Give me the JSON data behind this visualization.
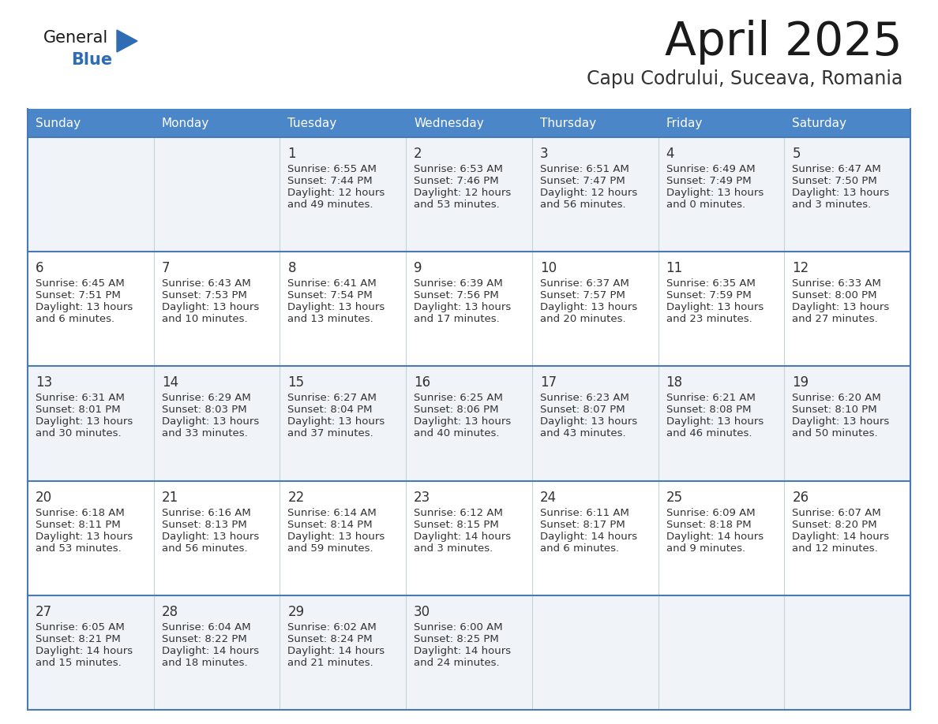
{
  "title": "April 2025",
  "subtitle": "Capu Codrului, Suceava, Romania",
  "days_of_week": [
    "Sunday",
    "Monday",
    "Tuesday",
    "Wednesday",
    "Thursday",
    "Friday",
    "Saturday"
  ],
  "header_bg": "#4a86c8",
  "header_text": "#ffffff",
  "row_bg_odd": "#f0f4f8",
  "row_bg_even": "#ffffff",
  "border_color": "#4a7ab5",
  "separator_color": "#4a7ab5",
  "day_number_color": "#333333",
  "text_color": "#333333",
  "title_color": "#1a1a1a",
  "subtitle_color": "#333333",
  "logo_general_color": "#1a1a1a",
  "logo_blue_color": "#2e6db4",
  "calendar_data": [
    {
      "day": 1,
      "col": 2,
      "row": 0,
      "sunrise": "6:55 AM",
      "sunset": "7:44 PM",
      "daylight": "12 hours and 49 minutes."
    },
    {
      "day": 2,
      "col": 3,
      "row": 0,
      "sunrise": "6:53 AM",
      "sunset": "7:46 PM",
      "daylight": "12 hours and 53 minutes."
    },
    {
      "day": 3,
      "col": 4,
      "row": 0,
      "sunrise": "6:51 AM",
      "sunset": "7:47 PM",
      "daylight": "12 hours and 56 minutes."
    },
    {
      "day": 4,
      "col": 5,
      "row": 0,
      "sunrise": "6:49 AM",
      "sunset": "7:49 PM",
      "daylight": "13 hours and 0 minutes."
    },
    {
      "day": 5,
      "col": 6,
      "row": 0,
      "sunrise": "6:47 AM",
      "sunset": "7:50 PM",
      "daylight": "13 hours and 3 minutes."
    },
    {
      "day": 6,
      "col": 0,
      "row": 1,
      "sunrise": "6:45 AM",
      "sunset": "7:51 PM",
      "daylight": "13 hours and 6 minutes."
    },
    {
      "day": 7,
      "col": 1,
      "row": 1,
      "sunrise": "6:43 AM",
      "sunset": "7:53 PM",
      "daylight": "13 hours and 10 minutes."
    },
    {
      "day": 8,
      "col": 2,
      "row": 1,
      "sunrise": "6:41 AM",
      "sunset": "7:54 PM",
      "daylight": "13 hours and 13 minutes."
    },
    {
      "day": 9,
      "col": 3,
      "row": 1,
      "sunrise": "6:39 AM",
      "sunset": "7:56 PM",
      "daylight": "13 hours and 17 minutes."
    },
    {
      "day": 10,
      "col": 4,
      "row": 1,
      "sunrise": "6:37 AM",
      "sunset": "7:57 PM",
      "daylight": "13 hours and 20 minutes."
    },
    {
      "day": 11,
      "col": 5,
      "row": 1,
      "sunrise": "6:35 AM",
      "sunset": "7:59 PM",
      "daylight": "13 hours and 23 minutes."
    },
    {
      "day": 12,
      "col": 6,
      "row": 1,
      "sunrise": "6:33 AM",
      "sunset": "8:00 PM",
      "daylight": "13 hours and 27 minutes."
    },
    {
      "day": 13,
      "col": 0,
      "row": 2,
      "sunrise": "6:31 AM",
      "sunset": "8:01 PM",
      "daylight": "13 hours and 30 minutes."
    },
    {
      "day": 14,
      "col": 1,
      "row": 2,
      "sunrise": "6:29 AM",
      "sunset": "8:03 PM",
      "daylight": "13 hours and 33 minutes."
    },
    {
      "day": 15,
      "col": 2,
      "row": 2,
      "sunrise": "6:27 AM",
      "sunset": "8:04 PM",
      "daylight": "13 hours and 37 minutes."
    },
    {
      "day": 16,
      "col": 3,
      "row": 2,
      "sunrise": "6:25 AM",
      "sunset": "8:06 PM",
      "daylight": "13 hours and 40 minutes."
    },
    {
      "day": 17,
      "col": 4,
      "row": 2,
      "sunrise": "6:23 AM",
      "sunset": "8:07 PM",
      "daylight": "13 hours and 43 minutes."
    },
    {
      "day": 18,
      "col": 5,
      "row": 2,
      "sunrise": "6:21 AM",
      "sunset": "8:08 PM",
      "daylight": "13 hours and 46 minutes."
    },
    {
      "day": 19,
      "col": 6,
      "row": 2,
      "sunrise": "6:20 AM",
      "sunset": "8:10 PM",
      "daylight": "13 hours and 50 minutes."
    },
    {
      "day": 20,
      "col": 0,
      "row": 3,
      "sunrise": "6:18 AM",
      "sunset": "8:11 PM",
      "daylight": "13 hours and 53 minutes."
    },
    {
      "day": 21,
      "col": 1,
      "row": 3,
      "sunrise": "6:16 AM",
      "sunset": "8:13 PM",
      "daylight": "13 hours and 56 minutes."
    },
    {
      "day": 22,
      "col": 2,
      "row": 3,
      "sunrise": "6:14 AM",
      "sunset": "8:14 PM",
      "daylight": "13 hours and 59 minutes."
    },
    {
      "day": 23,
      "col": 3,
      "row": 3,
      "sunrise": "6:12 AM",
      "sunset": "8:15 PM",
      "daylight": "14 hours and 3 minutes."
    },
    {
      "day": 24,
      "col": 4,
      "row": 3,
      "sunrise": "6:11 AM",
      "sunset": "8:17 PM",
      "daylight": "14 hours and 6 minutes."
    },
    {
      "day": 25,
      "col": 5,
      "row": 3,
      "sunrise": "6:09 AM",
      "sunset": "8:18 PM",
      "daylight": "14 hours and 9 minutes."
    },
    {
      "day": 26,
      "col": 6,
      "row": 3,
      "sunrise": "6:07 AM",
      "sunset": "8:20 PM",
      "daylight": "14 hours and 12 minutes."
    },
    {
      "day": 27,
      "col": 0,
      "row": 4,
      "sunrise": "6:05 AM",
      "sunset": "8:21 PM",
      "daylight": "14 hours and 15 minutes."
    },
    {
      "day": 28,
      "col": 1,
      "row": 4,
      "sunrise": "6:04 AM",
      "sunset": "8:22 PM",
      "daylight": "14 hours and 18 minutes."
    },
    {
      "day": 29,
      "col": 2,
      "row": 4,
      "sunrise": "6:02 AM",
      "sunset": "8:24 PM",
      "daylight": "14 hours and 21 minutes."
    },
    {
      "day": 30,
      "col": 3,
      "row": 4,
      "sunrise": "6:00 AM",
      "sunset": "8:25 PM",
      "daylight": "14 hours and 24 minutes."
    }
  ],
  "fig_width": 11.88,
  "fig_height": 9.18,
  "dpi": 100
}
